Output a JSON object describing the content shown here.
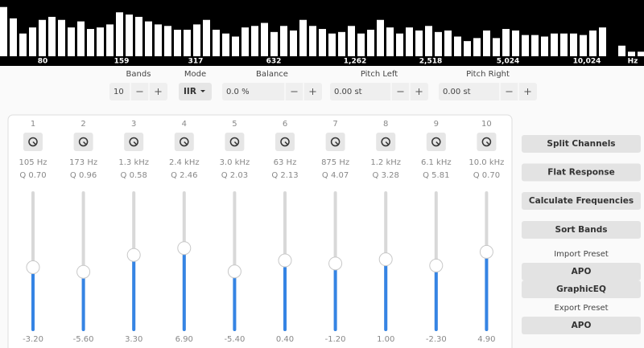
{
  "spectrum": {
    "range": [
      0,
      70
    ],
    "levels": [
      65,
      50,
      30,
      38,
      48,
      52,
      48,
      38,
      46,
      36,
      38,
      42,
      58,
      55,
      52,
      46,
      42,
      40,
      35,
      35,
      42,
      48,
      35,
      30,
      26,
      38,
      40,
      44,
      32,
      40,
      34,
      48,
      40,
      36,
      30,
      32,
      40,
      30,
      35,
      48,
      38,
      30,
      38,
      34,
      40,
      32,
      34,
      26,
      20,
      24,
      34,
      24,
      36,
      34,
      28,
      28,
      26,
      30,
      30,
      30,
      28,
      34,
      38,
      0,
      14,
      6,
      6
    ],
    "labels": [
      "80",
      "159",
      "317",
      "632",
      "1,262",
      "2,518",
      "5,024",
      "10,024",
      "Hz"
    ]
  },
  "controls": {
    "bands": {
      "label": "Bands",
      "value": "10"
    },
    "mode": {
      "label": "Mode",
      "value": "IIR"
    },
    "balance": {
      "label": "Balance",
      "value": "0.0 %"
    },
    "pitch_left": {
      "label": "Pitch Left",
      "value": "0.00 st"
    },
    "pitch_right": {
      "label": "Pitch Right",
      "value": "0.00 st"
    }
  },
  "gain_range": [
    -36,
    36
  ],
  "bands": [
    {
      "number": "1",
      "frequency": "105 Hz",
      "q": "Q 0.70",
      "gain": -3.2,
      "gain_label": "-3.20"
    },
    {
      "number": "2",
      "frequency": "173 Hz",
      "q": "Q 0.96",
      "gain": -5.6,
      "gain_label": "-5.60"
    },
    {
      "number": "3",
      "frequency": "1.3 kHz",
      "q": "Q 0.58",
      "gain": 3.3,
      "gain_label": "3.30"
    },
    {
      "number": "4",
      "frequency": "2.4 kHz",
      "q": "Q 2.46",
      "gain": 6.9,
      "gain_label": "6.90"
    },
    {
      "number": "5",
      "frequency": "3.0 kHz",
      "q": "Q 2.03",
      "gain": -5.4,
      "gain_label": "-5.40"
    },
    {
      "number": "6",
      "frequency": "63 Hz",
      "q": "Q 2.13",
      "gain": 0.4,
      "gain_label": "0.40"
    },
    {
      "number": "7",
      "frequency": "875 Hz",
      "q": "Q 4.07",
      "gain": -1.2,
      "gain_label": "-1.20"
    },
    {
      "number": "8",
      "frequency": "1.2 kHz",
      "q": "Q 3.28",
      "gain": 1,
      "gain_label": "1.00"
    },
    {
      "number": "9",
      "frequency": "6.1 kHz",
      "q": "Q 5.81",
      "gain": -2.3,
      "gain_label": "-2.30"
    },
    {
      "number": "10",
      "frequency": "10.0 kHz",
      "q": "Q 0.70",
      "gain": 4.9,
      "gain_label": "4.90"
    }
  ],
  "actions": [
    "Split Channels",
    "Flat Response",
    "Calculate Frequencies",
    "Sort Bands"
  ],
  "import_preset": {
    "label": "Import Preset",
    "buttons": [
      "APO",
      "GraphicEQ"
    ]
  },
  "export_preset": {
    "label": "Export Preset",
    "buttons": [
      "APO"
    ]
  }
}
